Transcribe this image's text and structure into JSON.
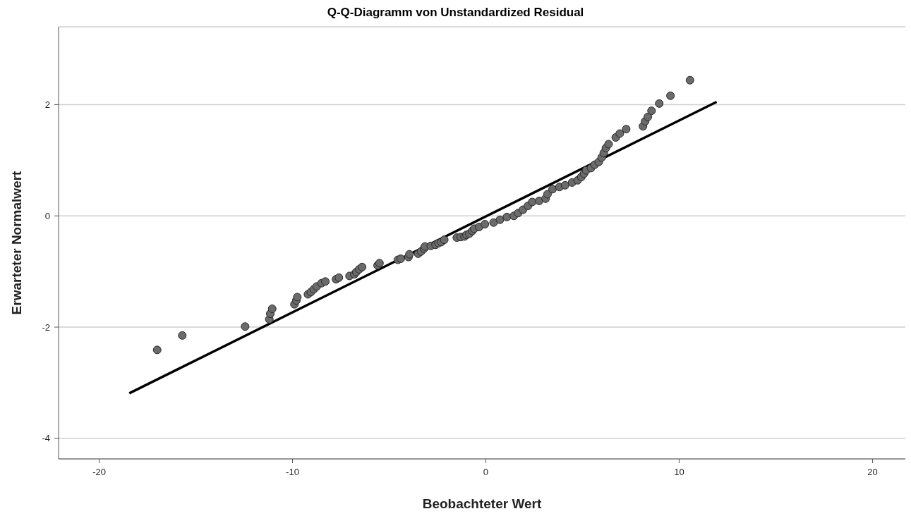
{
  "chart_data": {
    "type": "scatter",
    "title": "Q-Q-Diagramm von Unstandardized Residual",
    "xlabel": "Beobachteter Wert",
    "ylabel": "Erwarteter Normalwert",
    "xlim": [
      -22.1,
      21.7
    ],
    "ylim": [
      -4.37,
      3.4
    ],
    "xticks": [
      -20,
      -10,
      0,
      10,
      20
    ],
    "yticks": [
      -4,
      -2,
      0,
      2
    ],
    "grid": "y",
    "marker": "circle",
    "series": [
      {
        "color": "#6b6b6b",
        "x": [
          -17.0,
          -15.7,
          -12.45,
          -11.2,
          -11.15,
          -11.05,
          -9.9,
          -9.8,
          -9.75,
          -9.2,
          -9.05,
          -8.9,
          -8.75,
          -8.5,
          -8.3,
          -7.75,
          -7.6,
          -7.05,
          -6.8,
          -6.7,
          -6.55,
          -6.4,
          -5.6,
          -5.5,
          -4.55,
          -4.4,
          -4.0,
          -3.95,
          -3.5,
          -3.35,
          -3.2,
          -3.15,
          -2.85,
          -2.6,
          -2.45,
          -2.3,
          -2.15,
          -1.5,
          -1.3,
          -1.1,
          -1.0,
          -0.85,
          -0.7,
          -0.6,
          -0.35,
          -0.05,
          0.4,
          0.73,
          1.09,
          1.45,
          1.67,
          1.92,
          2.18,
          2.4,
          2.76,
          3.09,
          3.19,
          3.45,
          3.81,
          4.1,
          4.46,
          4.75,
          4.94,
          5.08,
          5.19,
          5.44,
          5.63,
          5.84,
          5.99,
          6.1,
          6.21,
          6.35,
          6.72,
          6.93,
          7.26,
          8.13,
          8.24,
          8.38,
          8.57,
          8.97,
          9.55,
          10.56
        ],
        "values": [
          -2.41,
          -2.15,
          -1.99,
          -1.86,
          -1.76,
          -1.67,
          -1.59,
          -1.52,
          -1.46,
          -1.41,
          -1.37,
          -1.32,
          -1.27,
          -1.21,
          -1.18,
          -1.14,
          -1.11,
          -1.08,
          -1.05,
          -1.01,
          -0.96,
          -0.92,
          -0.89,
          -0.85,
          -0.79,
          -0.77,
          -0.74,
          -0.69,
          -0.68,
          -0.64,
          -0.59,
          -0.55,
          -0.54,
          -0.52,
          -0.49,
          -0.47,
          -0.43,
          -0.39,
          -0.38,
          -0.37,
          -0.34,
          -0.32,
          -0.27,
          -0.23,
          -0.2,
          -0.15,
          -0.12,
          -0.07,
          -0.02,
          0.0,
          0.05,
          0.11,
          0.18,
          0.25,
          0.27,
          0.31,
          0.39,
          0.48,
          0.52,
          0.55,
          0.6,
          0.64,
          0.7,
          0.76,
          0.82,
          0.86,
          0.92,
          0.97,
          1.05,
          1.13,
          1.22,
          1.29,
          1.41,
          1.48,
          1.56,
          1.61,
          1.7,
          1.78,
          1.89,
          2.02,
          2.16,
          2.44
        ]
      },
      {
        "type": "line",
        "color": "#000000",
        "line_style": "solid",
        "marker": "none",
        "x": [
          -18.44,
          11.94
        ],
        "values": [
          -3.19,
          2.05
        ]
      }
    ]
  }
}
